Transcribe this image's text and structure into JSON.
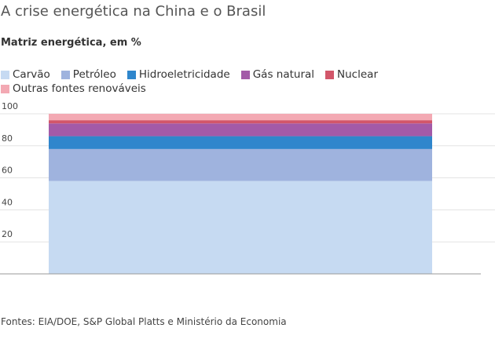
{
  "header": {
    "title": "A crise energética na China e o Brasil",
    "subtitle": "Matriz energética, em %"
  },
  "source": "Fontes: EIA/DOE, S&P Global Platts e Ministério da Economia",
  "chart_data": {
    "type": "bar",
    "stacked": true,
    "categories": [
      ""
    ],
    "series": [
      {
        "name": "Carvão",
        "color": "#c6daf2",
        "values": [
          58
        ]
      },
      {
        "name": "Petróleo",
        "color": "#9fb3de",
        "values": [
          20
        ]
      },
      {
        "name": "Hidroeletricidade",
        "color": "#2f86cc",
        "values": [
          8
        ]
      },
      {
        "name": "Gás natural",
        "color": "#a35aa8",
        "values": [
          8
        ]
      },
      {
        "name": "Nuclear",
        "color": "#d2566a",
        "values": [
          2
        ]
      },
      {
        "name": "Outras fontes renováveis",
        "color": "#f3a9b3",
        "values": [
          4
        ]
      }
    ],
    "yticks": [
      20,
      40,
      60,
      80,
      100
    ],
    "ylim": [
      0,
      100
    ],
    "grid": true,
    "legend_position": "top"
  }
}
